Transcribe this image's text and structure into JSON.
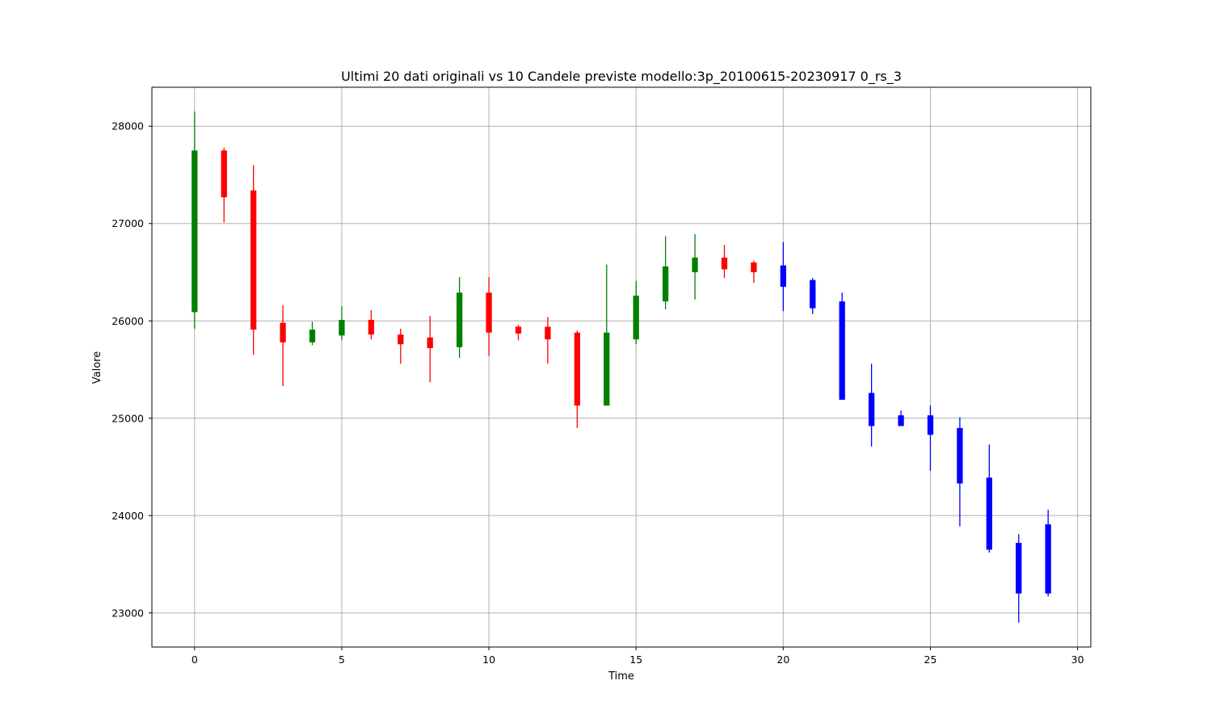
{
  "chart_data": {
    "type": "candlestick",
    "title": "Ultimi 20 dati originali vs 10 Candele previste modello:3p_20100615-20230917 0_rs_3",
    "xlabel": "Time",
    "ylabel": "Valore",
    "xlim": [
      -1.45,
      30.45
    ],
    "ylim": [
      22650,
      28400
    ],
    "xticks": [
      0,
      5,
      10,
      15,
      20,
      25,
      30
    ],
    "yticks": [
      23000,
      24000,
      25000,
      26000,
      27000,
      28000
    ],
    "grid": true,
    "colors": {
      "up": "#008000",
      "down": "#ff0000",
      "forecast": "#0000ff",
      "grid": "#b0b0b0"
    },
    "candles": [
      {
        "t": 0,
        "open": 26090,
        "high": 28150,
        "low": 25920,
        "close": 27750,
        "kind": "original"
      },
      {
        "t": 1,
        "open": 27750,
        "high": 27780,
        "low": 27010,
        "close": 27270,
        "kind": "original"
      },
      {
        "t": 2,
        "open": 27340,
        "high": 27600,
        "low": 25650,
        "close": 25910,
        "kind": "original"
      },
      {
        "t": 3,
        "open": 25980,
        "high": 26160,
        "low": 25330,
        "close": 25780,
        "kind": "original"
      },
      {
        "t": 4,
        "open": 25780,
        "high": 25990,
        "low": 25750,
        "close": 25910,
        "kind": "original"
      },
      {
        "t": 5,
        "open": 25850,
        "high": 26150,
        "low": 25800,
        "close": 26010,
        "kind": "original"
      },
      {
        "t": 6,
        "open": 26010,
        "high": 26110,
        "low": 25810,
        "close": 25860,
        "kind": "original"
      },
      {
        "t": 7,
        "open": 25860,
        "high": 25920,
        "low": 25560,
        "close": 25760,
        "kind": "original"
      },
      {
        "t": 8,
        "open": 25830,
        "high": 26050,
        "low": 25370,
        "close": 25720,
        "kind": "original"
      },
      {
        "t": 9,
        "open": 25730,
        "high": 26450,
        "low": 25620,
        "close": 26290,
        "kind": "original"
      },
      {
        "t": 10,
        "open": 26290,
        "high": 26450,
        "low": 25640,
        "close": 25880,
        "kind": "original"
      },
      {
        "t": 11,
        "open": 25940,
        "high": 25960,
        "low": 25800,
        "close": 25870,
        "kind": "original"
      },
      {
        "t": 12,
        "open": 25940,
        "high": 26040,
        "low": 25560,
        "close": 25810,
        "kind": "original"
      },
      {
        "t": 13,
        "open": 25880,
        "high": 25900,
        "low": 24900,
        "close": 25130,
        "kind": "original"
      },
      {
        "t": 14,
        "open": 25130,
        "high": 26580,
        "low": 25130,
        "close": 25880,
        "kind": "original"
      },
      {
        "t": 15,
        "open": 25810,
        "high": 26410,
        "low": 25760,
        "close": 26260,
        "kind": "original"
      },
      {
        "t": 16,
        "open": 26200,
        "high": 26870,
        "low": 26120,
        "close": 26560,
        "kind": "original"
      },
      {
        "t": 17,
        "open": 26500,
        "high": 26890,
        "low": 26220,
        "close": 26650,
        "kind": "original"
      },
      {
        "t": 18,
        "open": 26650,
        "high": 26780,
        "low": 26440,
        "close": 26530,
        "kind": "original"
      },
      {
        "t": 19,
        "open": 26600,
        "high": 26620,
        "low": 26390,
        "close": 26500,
        "kind": "original"
      },
      {
        "t": 20,
        "open": 26570,
        "high": 26810,
        "low": 26100,
        "close": 26350,
        "kind": "forecast"
      },
      {
        "t": 21,
        "open": 26420,
        "high": 26440,
        "low": 26070,
        "close": 26130,
        "kind": "forecast"
      },
      {
        "t": 22,
        "open": 26200,
        "high": 26290,
        "low": 25190,
        "close": 25190,
        "kind": "forecast"
      },
      {
        "t": 23,
        "open": 25260,
        "high": 25560,
        "low": 24710,
        "close": 24920,
        "kind": "forecast"
      },
      {
        "t": 24,
        "open": 25030,
        "high": 25080,
        "low": 24920,
        "close": 24920,
        "kind": "forecast"
      },
      {
        "t": 25,
        "open": 25030,
        "high": 25130,
        "low": 24460,
        "close": 24830,
        "kind": "forecast"
      },
      {
        "t": 26,
        "open": 24900,
        "high": 25010,
        "low": 23890,
        "close": 24330,
        "kind": "forecast"
      },
      {
        "t": 27,
        "open": 24390,
        "high": 24730,
        "low": 23620,
        "close": 23650,
        "kind": "forecast"
      },
      {
        "t": 28,
        "open": 23720,
        "high": 23810,
        "low": 22900,
        "close": 23200,
        "kind": "forecast"
      },
      {
        "t": 29,
        "open": 23910,
        "high": 24060,
        "low": 23170,
        "close": 23200,
        "kind": "forecast"
      }
    ]
  }
}
